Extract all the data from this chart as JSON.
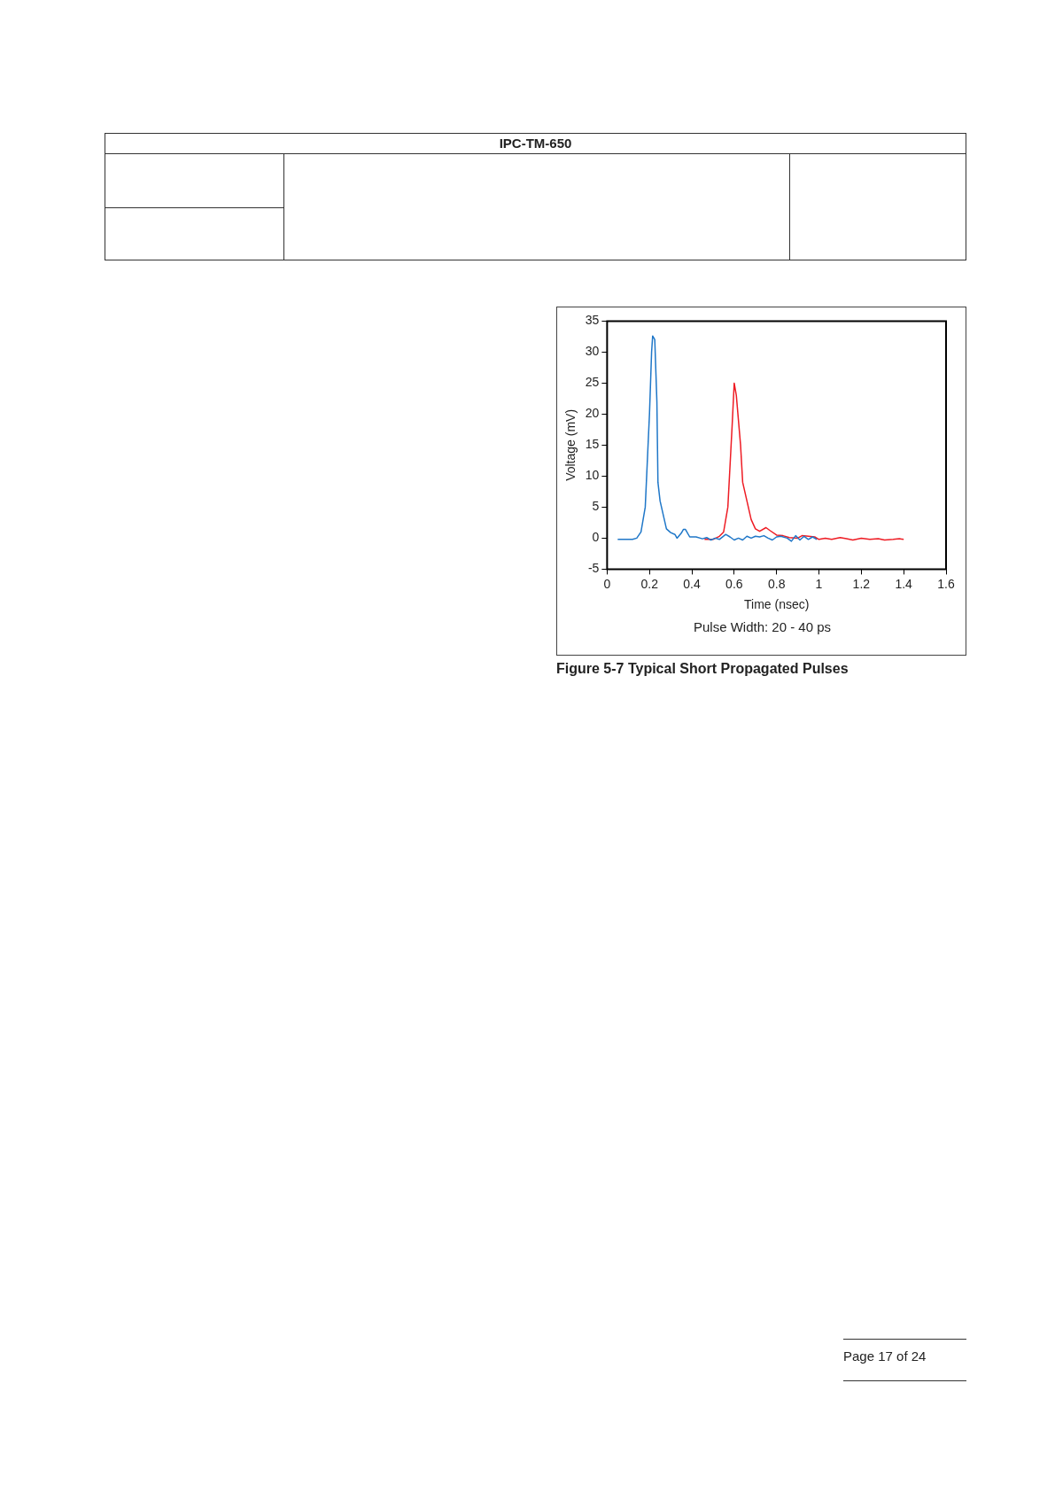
{
  "chart_data": {
    "type": "line",
    "title": "Figure 5-7   Typical Short Propagated Pulses",
    "xlabel": "Time (nsec)",
    "ylabel": "Voltage (mV)",
    "annotations": [
      "Pulse Width: 20 - 40 ps",
      "IPC-TM-650",
      "Page 17 of 24"
    ],
    "xlim": [
      0,
      1.6
    ],
    "xticks": [
      0,
      0.2,
      0.4,
      0.6,
      0.8,
      1,
      1.2,
      1.4,
      1.6
    ],
    "ylim": [
      -5,
      35
    ],
    "yticks": [
      -5,
      0,
      5,
      10,
      15,
      20,
      25,
      30,
      35
    ],
    "grid": false,
    "legend": false,
    "marker": "none",
    "line_style": "solid",
    "series": [
      {
        "color": "#1f77c8",
        "x": [
          0.05,
          0.12,
          0.14,
          0.16,
          0.18,
          0.2,
          0.21,
          0.215,
          0.225,
          0.235,
          0.24,
          0.25,
          0.27,
          0.28,
          0.3,
          0.32,
          0.33,
          0.35,
          0.36,
          0.37,
          0.39,
          0.42,
          0.45,
          0.47,
          0.49,
          0.51,
          0.53,
          0.56,
          0.58,
          0.6,
          0.62,
          0.64,
          0.66,
          0.68,
          0.7,
          0.72,
          0.74,
          0.76,
          0.78,
          0.8,
          0.82,
          0.85,
          0.87,
          0.89,
          0.91,
          0.93,
          0.95,
          0.97,
          0.99
        ],
        "values": [
          -0.2,
          -0.2,
          0,
          1,
          5,
          20,
          30,
          32.6,
          32,
          22,
          9,
          6,
          3,
          1.5,
          0.9,
          0.6,
          0,
          0.8,
          1.4,
          1.4,
          0.2,
          0.2,
          -0.1,
          0.1,
          -0.3,
          0,
          -0.2,
          0.6,
          0.2,
          -0.3,
          0,
          -0.3,
          0.3,
          0,
          0.3,
          0.2,
          0.4,
          0,
          -0.3,
          0.2,
          0.3,
          0,
          -0.5,
          0.4,
          -0.3,
          0.3,
          -0.2,
          0.2,
          -0.2
        ]
      },
      {
        "color": "#ee1c24",
        "x": [
          0.46,
          0.5,
          0.53,
          0.55,
          0.57,
          0.59,
          0.6,
          0.61,
          0.63,
          0.64,
          0.66,
          0.68,
          0.7,
          0.72,
          0.75,
          0.77,
          0.8,
          0.83,
          0.86,
          0.9,
          0.92,
          0.95,
          0.98,
          1.0,
          1.03,
          1.06,
          1.1,
          1.13,
          1.16,
          1.2,
          1.24,
          1.28,
          1.31,
          1.35,
          1.38,
          1.4
        ],
        "values": [
          -0.2,
          -0.2,
          0.3,
          1,
          5,
          18,
          25,
          23,
          15,
          9,
          6,
          3,
          1.5,
          1.1,
          1.7,
          1.2,
          0.5,
          0.4,
          0.1,
          0,
          0.4,
          0.3,
          0.2,
          -0.2,
          0,
          -0.2,
          0.1,
          -0.1,
          -0.3,
          0,
          -0.2,
          -0.1,
          -0.3,
          -0.2,
          -0.1,
          -0.2
        ]
      }
    ]
  }
}
